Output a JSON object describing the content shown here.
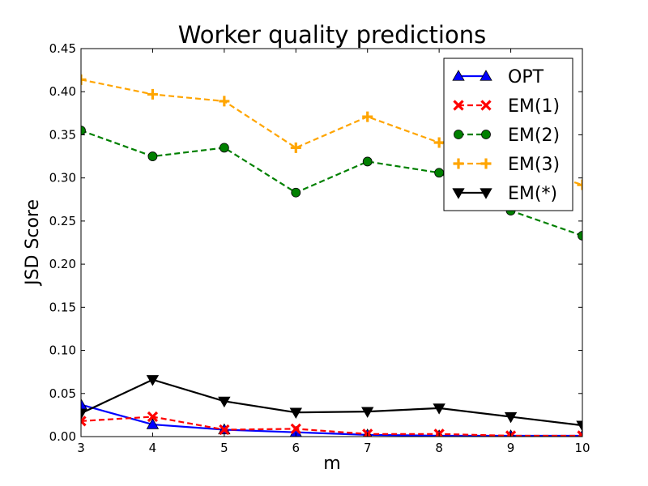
{
  "chart_data": {
    "type": "line",
    "title": "Worker quality predictions",
    "xlabel": "m",
    "ylabel": "JSD Score",
    "x": [
      3,
      4,
      5,
      6,
      7,
      8,
      9,
      10
    ],
    "xlim": [
      3,
      10
    ],
    "ylim": [
      0,
      0.45
    ],
    "xticks": [
      "3",
      "4",
      "5",
      "6",
      "7",
      "8",
      "9",
      "10"
    ],
    "yticks": [
      "0.00",
      "0.05",
      "0.10",
      "0.15",
      "0.20",
      "0.25",
      "0.30",
      "0.35",
      "0.40",
      "0.45"
    ],
    "grid": false,
    "legend_position": "top-right",
    "series": [
      {
        "name": "OPT",
        "color": "#0000ff",
        "dash": "solid",
        "marker": "triangle-up",
        "values": [
          0.037,
          0.014,
          0.008,
          0.005,
          0.002,
          0.001,
          0.001,
          0.001
        ]
      },
      {
        "name": "EM(1)",
        "color": "#ff0000",
        "dash": "dashed",
        "marker": "x",
        "values": [
          0.018,
          0.023,
          0.008,
          0.009,
          0.003,
          0.003,
          0.001,
          0.001
        ]
      },
      {
        "name": "EM(2)",
        "color": "#008000",
        "dash": "dashed",
        "marker": "circle",
        "values": [
          0.355,
          0.325,
          0.335,
          0.283,
          0.319,
          0.306,
          0.262,
          0.233
        ]
      },
      {
        "name": "EM(3)",
        "color": "#ffa500",
        "dash": "dashed",
        "marker": "plus",
        "values": [
          0.414,
          0.397,
          0.389,
          0.335,
          0.371,
          0.341,
          0.318,
          0.292
        ]
      },
      {
        "name": "EM(*)",
        "color": "#000000",
        "dash": "solid",
        "marker": "triangle-down",
        "values": [
          0.027,
          0.066,
          0.041,
          0.028,
          0.029,
          0.033,
          0.023,
          0.013
        ]
      }
    ]
  }
}
